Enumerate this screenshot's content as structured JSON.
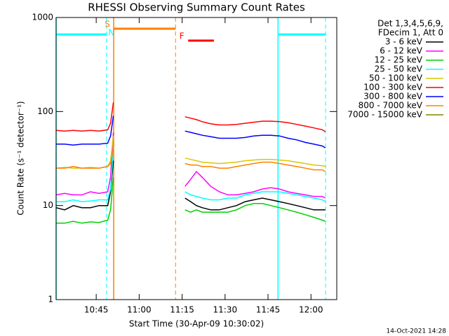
{
  "chart_data": {
    "type": "line",
    "title": "RHESSI Observing Summary Count Rates",
    "xlabel": "Start Time (30-Apr-09 10:30:02)",
    "ylabel": "Count Rate (s⁻¹ detector⁻¹)",
    "legend_header": [
      "Det 1,3,4,5,6,9,",
      "FDecim 1, Att 0"
    ],
    "footer": "14-Oct-2021 14:28",
    "log_y": true,
    "xlim": [
      1,
      99
    ],
    "xticks": [
      {
        "value": 15,
        "label": "10:45"
      },
      {
        "value": 30,
        "label": "11:00"
      },
      {
        "value": 45,
        "label": "11:15"
      },
      {
        "value": 60,
        "label": "11:30"
      },
      {
        "value": 75,
        "label": "11:45"
      },
      {
        "value": 90,
        "label": "12:00"
      }
    ],
    "ylim": [
      1,
      1000
    ],
    "yticks": [
      1,
      10,
      100,
      1000
    ],
    "x": [
      1,
      4,
      7,
      10,
      13,
      16,
      19,
      20,
      21,
      30,
      46,
      48,
      50,
      52,
      55,
      58,
      61,
      64,
      67,
      70,
      73,
      76,
      79,
      82,
      85,
      88,
      91,
      94,
      95
    ],
    "series": [
      {
        "name": "3 - 6 keV",
        "color": "#000000",
        "values": [
          9.5,
          9,
          10,
          9.5,
          9.5,
          10,
          10,
          14,
          30,
          null,
          12,
          11,
          10,
          9.5,
          9,
          9,
          9.5,
          10,
          11,
          11.5,
          12,
          11.5,
          11,
          10.5,
          10,
          9.5,
          9,
          9,
          9
        ]
      },
      {
        "name": "6 - 12 keV",
        "color": "#ff00ff",
        "values": [
          13,
          13.5,
          13,
          13,
          14,
          13.5,
          14,
          20,
          60,
          null,
          16,
          19,
          23,
          20,
          16,
          14,
          13,
          13,
          13.5,
          14,
          15,
          15.5,
          15,
          14,
          13.5,
          13,
          12.5,
          12.5,
          12
        ]
      },
      {
        "name": "12 - 25 keV",
        "color": "#00d000",
        "values": [
          6.5,
          6.5,
          6.8,
          6.5,
          6.7,
          6.6,
          7,
          9,
          20,
          null,
          9,
          8.5,
          9,
          8.5,
          8.5,
          8.5,
          8.5,
          9,
          10,
          10.5,
          10.5,
          10,
          9.5,
          9,
          8.5,
          8,
          7.5,
          7,
          6.8
        ]
      },
      {
        "name": "25 - 50 keV",
        "color": "#00ffff",
        "values": [
          11,
          11,
          11.5,
          11,
          11.2,
          11.5,
          11.5,
          15,
          40,
          null,
          14,
          13,
          12.5,
          12,
          11.5,
          11.5,
          12,
          12,
          13,
          13.5,
          14,
          14,
          14,
          13.5,
          13,
          12.5,
          12,
          11.5,
          11
        ]
      },
      {
        "name": "50 - 100 keV",
        "color": "#d8c800",
        "values": [
          25,
          25.5,
          25,
          25,
          25.5,
          25,
          26,
          30,
          55,
          null,
          32,
          31,
          30,
          29,
          28.5,
          28,
          28.5,
          29,
          30,
          30.5,
          31,
          31,
          30.5,
          30,
          29,
          28,
          27,
          26.5,
          26
        ]
      },
      {
        "name": "100 - 300 keV",
        "color": "#ff0000",
        "values": [
          63,
          62,
          63,
          62,
          63,
          62,
          64,
          75,
          125,
          null,
          88,
          85,
          82,
          78,
          74,
          72,
          72,
          73,
          75,
          77,
          79,
          79,
          78,
          76,
          73,
          70,
          67,
          64,
          61
        ]
      },
      {
        "name": "300 - 800 keV",
        "color": "#0000ff",
        "values": [
          45,
          45,
          44,
          45,
          45,
          45,
          46,
          55,
          90,
          null,
          62,
          60,
          58,
          56,
          54,
          52,
          52,
          52,
          53,
          55,
          56,
          56,
          55,
          52,
          50,
          47,
          45,
          43,
          41
        ]
      },
      {
        "name": "800 - 7000 keV",
        "color": "#ff8000",
        "values": [
          25,
          25,
          26,
          25,
          25,
          25,
          26,
          28,
          40,
          null,
          28,
          27,
          27,
          26,
          26,
          25,
          25,
          26,
          27,
          28,
          29,
          29,
          28,
          27,
          26,
          25,
          24,
          24,
          23
        ]
      },
      {
        "name": "7000 - 15000 keV",
        "color": "#808000",
        "values": [
          null,
          null,
          null,
          null,
          null,
          null,
          null,
          null,
          null,
          null,
          null,
          null,
          null,
          null,
          null,
          null,
          null,
          null,
          null,
          null,
          null,
          null,
          null,
          null,
          null,
          null,
          null,
          null,
          null
        ]
      }
    ],
    "flags": [
      {
        "label": "N",
        "color": "#00ffff",
        "start": 1,
        "end": 18.6,
        "level": 660,
        "lines": true
      },
      {
        "label": "S",
        "color": "#ff8000",
        "start": 21.1,
        "end": 42.7,
        "level": 760,
        "lines": true
      },
      {
        "label": "F",
        "color": "#ff0000",
        "start": 47.1,
        "end": 56.1,
        "level": 568,
        "lines": false
      },
      {
        "color": "#00ffff",
        "start": 78.5,
        "end": 95.1,
        "level": 660,
        "lines": true
      }
    ]
  }
}
